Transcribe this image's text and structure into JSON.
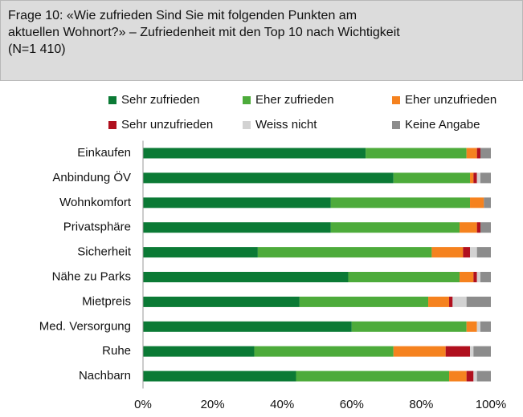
{
  "chart_data": {
    "type": "stacked-barh",
    "title": "Frage 10: «Wie zufrieden Sind Sie mit folgenden Punkten am\naktuellen Wohnort?» – Zufriedenheit mit den Top 10 nach Wichtigkeit\n(N=1 410)",
    "categories": [
      "Einkaufen",
      "Anbindung ÖV",
      "Wohnkomfort",
      "Privatsphäre",
      "Sicherheit",
      "Nähe zu Parks",
      "Mietpreis",
      "Med. Versorgung",
      "Ruhe",
      "Nachbarn"
    ],
    "series": [
      {
        "name": "Sehr zufrieden",
        "color": "#0b7a35",
        "values": [
          64,
          72,
          54,
          54,
          33,
          59,
          45,
          60,
          32,
          44
        ]
      },
      {
        "name": "Eher zufrieden",
        "color": "#4dab3b",
        "values": [
          29,
          22,
          40,
          37,
          50,
          32,
          37,
          33,
          40,
          44
        ]
      },
      {
        "name": "Eher unzufrieden",
        "color": "#f5821f",
        "values": [
          3,
          1,
          4,
          5,
          9,
          4,
          6,
          3,
          15,
          5
        ]
      },
      {
        "name": "Sehr unzufrieden",
        "color": "#b0101e",
        "values": [
          1,
          1,
          0,
          1,
          2,
          1,
          1,
          0,
          7,
          2
        ]
      },
      {
        "name": "Weiss nicht",
        "color": "#d2d2d2",
        "values": [
          0,
          1,
          0,
          0,
          2,
          1,
          4,
          1,
          1,
          1
        ]
      },
      {
        "name": "Keine Angabe",
        "color": "#8c8c8c",
        "values": [
          3,
          3,
          2,
          3,
          4,
          3,
          7,
          3,
          5,
          4
        ]
      }
    ],
    "xlim": [
      0,
      100
    ],
    "xticks": [
      {
        "value": 0,
        "label": "0%"
      },
      {
        "value": 20,
        "label": "20%"
      },
      {
        "value": 40,
        "label": "40%"
      },
      {
        "value": 60,
        "label": "60%"
      },
      {
        "value": 80,
        "label": "80%"
      },
      {
        "value": 100,
        "label": "100%"
      }
    ]
  }
}
